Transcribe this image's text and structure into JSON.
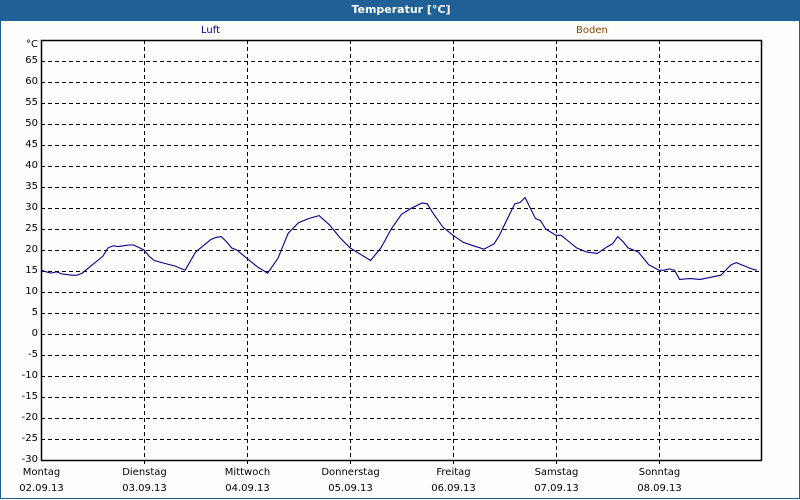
{
  "window": {
    "title": "Temperatur [°C]"
  },
  "legend": [
    {
      "label": "Luft",
      "color": "#00008b"
    },
    {
      "label": "Boden",
      "color": "#8b4500"
    }
  ],
  "colors": {
    "titlebar": "#1f6197",
    "line": "#00008b",
    "grid": "#000000"
  },
  "chart_data": {
    "type": "line",
    "title": "Temperatur [°C]",
    "xlabel": "",
    "ylabel": "°C",
    "ylim": [
      -30,
      70
    ],
    "yticks": [
      65,
      60,
      55,
      50,
      45,
      40,
      35,
      30,
      25,
      20,
      15,
      10,
      5,
      0,
      -5,
      -10,
      -15,
      -20,
      -25,
      -30
    ],
    "grid": true,
    "legend_position": "top",
    "categories": [
      {
        "day": "Montag",
        "date": "02.09.13"
      },
      {
        "day": "Dienstag",
        "date": "03.09.13"
      },
      {
        "day": "Mittwoch",
        "date": "04.09.13"
      },
      {
        "day": "Donnerstag",
        "date": "05.09.13"
      },
      {
        "day": "Freitag",
        "date": "06.09.13"
      },
      {
        "day": "Samstag",
        "date": "07.09.13"
      },
      {
        "day": "Sonntag",
        "date": "08.09.13"
      }
    ],
    "series": [
      {
        "name": "Luft",
        "color": "#00008b",
        "x_days": [
          0.0,
          0.05,
          0.1,
          0.15,
          0.2,
          0.3,
          0.35,
          0.4,
          0.5,
          0.55,
          0.6,
          0.65,
          0.7,
          0.75,
          0.8,
          0.85,
          0.9,
          1.0,
          1.05,
          1.1,
          1.2,
          1.3,
          1.4,
          1.5,
          1.6,
          1.65,
          1.7,
          1.75,
          1.8,
          1.85,
          1.9,
          2.0,
          2.1,
          2.2,
          2.3,
          2.4,
          2.5,
          2.6,
          2.7,
          2.8,
          2.85,
          2.9,
          3.0,
          3.1,
          3.2,
          3.3,
          3.4,
          3.5,
          3.6,
          3.7,
          3.75,
          3.8,
          3.9,
          4.0,
          4.1,
          4.2,
          4.3,
          4.4,
          4.45,
          4.5,
          4.55,
          4.6,
          4.65,
          4.7,
          4.8,
          4.85,
          4.9,
          5.0,
          5.05,
          5.1,
          5.2,
          5.3,
          5.4,
          5.5,
          5.55,
          5.6,
          5.65,
          5.7,
          5.8,
          5.85,
          5.9,
          6.0,
          6.05,
          6.1,
          6.15,
          6.2,
          6.3,
          6.4,
          6.5,
          6.6,
          6.7,
          6.75,
          6.8,
          6.9,
          6.95
        ],
        "values": [
          15.2,
          14.8,
          14.5,
          14.8,
          14.3,
          14.0,
          14.0,
          14.5,
          16.5,
          17.5,
          18.5,
          20.5,
          21.0,
          20.8,
          21.0,
          21.2,
          21.2,
          20.0,
          18.5,
          17.5,
          16.8,
          16.2,
          15.2,
          19.5,
          21.5,
          22.5,
          23.0,
          23.2,
          22.0,
          20.5,
          20.0,
          18.0,
          16.0,
          14.5,
          18.0,
          24.0,
          26.5,
          27.5,
          28.2,
          26.0,
          24.5,
          23.0,
          20.5,
          19.0,
          17.5,
          20.5,
          25.0,
          28.5,
          30.0,
          31.2,
          31.0,
          29.0,
          25.5,
          23.5,
          21.8,
          21.0,
          20.2,
          21.5,
          23.5,
          26.0,
          28.5,
          31.0,
          31.3,
          32.5,
          27.5,
          27.0,
          25.0,
          23.5,
          23.5,
          22.5,
          20.5,
          19.5,
          19.2,
          20.8,
          21.5,
          23.2,
          22.0,
          20.5,
          19.5,
          18.0,
          16.5,
          15.2,
          15.2,
          15.5,
          15.2,
          13.0,
          13.2,
          13.0,
          13.5,
          14.0,
          16.5,
          17.0,
          16.5,
          15.5,
          15.2
        ]
      }
    ]
  }
}
